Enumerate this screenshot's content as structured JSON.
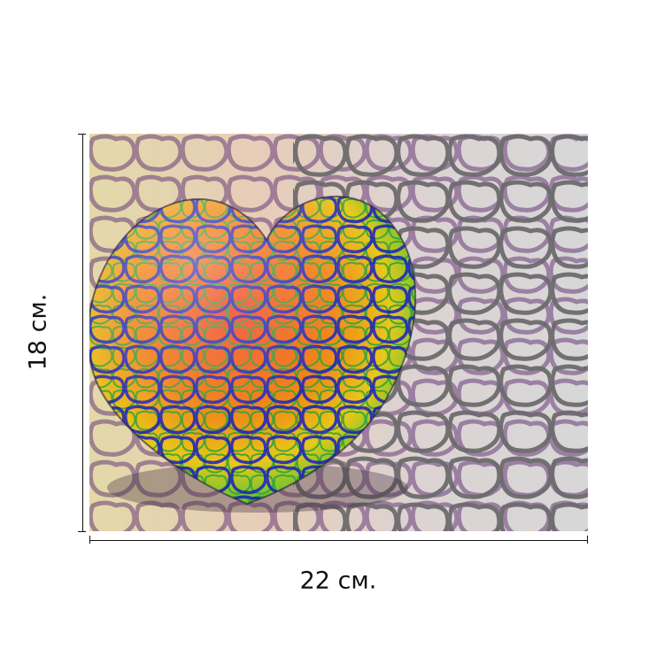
{
  "dimensions": {
    "height_label": "18 см.",
    "width_label": "22 см."
  },
  "artwork": {
    "subject": "heart",
    "colors": {
      "red": "#e8331a",
      "orange": "#f08a12",
      "yellow": "#f2e21a",
      "green": "#2fbf3a",
      "cyan": "#1fd0d8",
      "blue": "#1a1fc0",
      "grey_cells": "#d9d4d2",
      "grey_lines": "#6d6b6e",
      "purple_lines": "#6a3d7a"
    }
  }
}
